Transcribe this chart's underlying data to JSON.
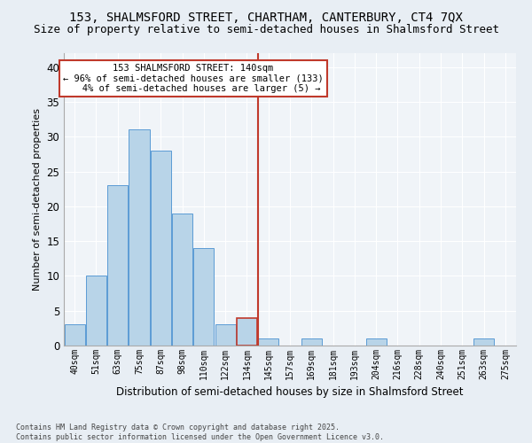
{
  "title1": "153, SHALMSFORD STREET, CHARTHAM, CANTERBURY, CT4 7QX",
  "title2": "Size of property relative to semi-detached houses in Shalmsford Street",
  "xlabel": "Distribution of semi-detached houses by size in Shalmsford Street",
  "ylabel": "Number of semi-detached properties",
  "footnote": "Contains HM Land Registry data © Crown copyright and database right 2025.\nContains public sector information licensed under the Open Government Licence v3.0.",
  "categories": [
    "40sqm",
    "51sqm",
    "63sqm",
    "75sqm",
    "87sqm",
    "98sqm",
    "110sqm",
    "122sqm",
    "134sqm",
    "145sqm",
    "157sqm",
    "169sqm",
    "181sqm",
    "193sqm",
    "204sqm",
    "216sqm",
    "228sqm",
    "240sqm",
    "251sqm",
    "263sqm",
    "275sqm"
  ],
  "values": [
    3,
    10,
    23,
    31,
    28,
    19,
    14,
    3,
    4,
    1,
    0,
    1,
    0,
    0,
    1,
    0,
    0,
    0,
    0,
    1,
    0
  ],
  "bar_color": "#b8d4e8",
  "bar_edge_color": "#5b9bd5",
  "vline_x_index": 8.5,
  "vline_color": "#c0392b",
  "annotation_title": "153 SHALMSFORD STREET: 140sqm",
  "annotation_line1": "← 96% of semi-detached houses are smaller (133)",
  "annotation_line2": "4% of semi-detached houses are larger (5) →",
  "annotation_box_color": "#ffffff",
  "annotation_box_edge_color": "#c0392b",
  "ylim": [
    0,
    42
  ],
  "yticks": [
    0,
    5,
    10,
    15,
    20,
    25,
    30,
    35,
    40
  ],
  "bg_color": "#e8eef4",
  "plot_bg_color": "#f0f4f8",
  "grid_color": "#ffffff",
  "title_fontsize": 10,
  "subtitle_fontsize": 9
}
